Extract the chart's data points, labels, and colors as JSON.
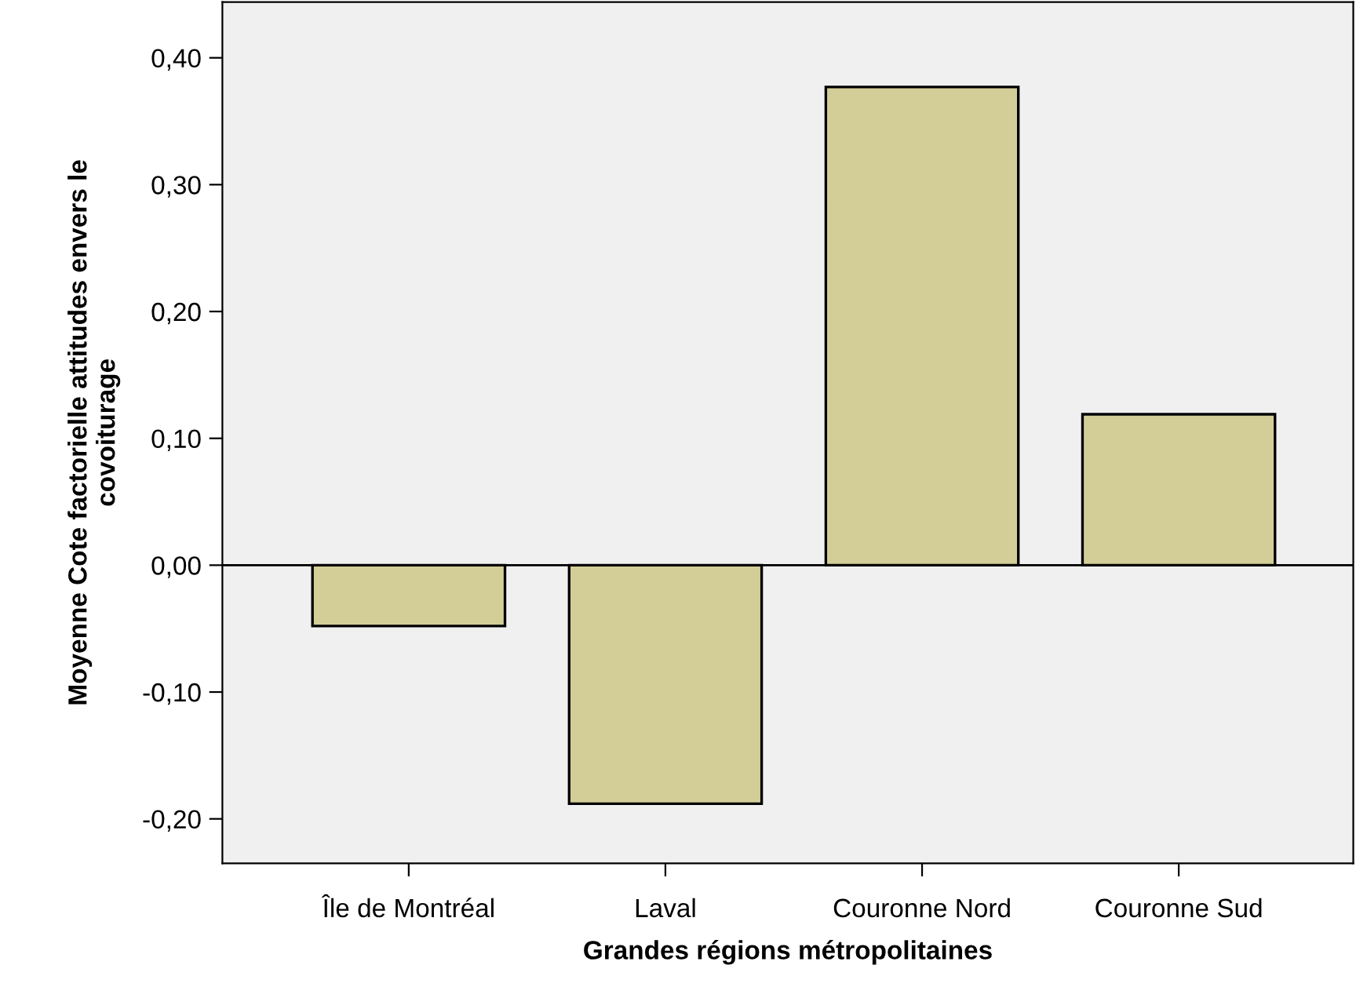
{
  "chart_data": {
    "type": "bar",
    "xlabel": "Grandes régions métropolitaines",
    "ylabel": "Moyenne Cote factorielle attitudes envers le\ncovoiturage",
    "categories": [
      "Île de Montréal",
      "Laval",
      "Couronne Nord",
      "Couronne Sud"
    ],
    "values": [
      -0.048,
      -0.188,
      0.377,
      0.119
    ],
    "color": "#d3ce98",
    "ylim": [
      -0.235,
      0.444
    ],
    "yticks": [
      {
        "value": -0.2,
        "label": "-0,20"
      },
      {
        "value": -0.1,
        "label": "-0,10"
      },
      {
        "value": 0.0,
        "label": "0,00"
      },
      {
        "value": 0.1,
        "label": "0,10"
      },
      {
        "value": 0.2,
        "label": "0,20"
      },
      {
        "value": 0.3,
        "label": "0,30"
      },
      {
        "value": 0.4,
        "label": "0,40"
      }
    ],
    "ref_lines": [
      {
        "axis": "y",
        "value": 0,
        "color": "#000000"
      }
    ],
    "grid": false,
    "legend": false
  }
}
